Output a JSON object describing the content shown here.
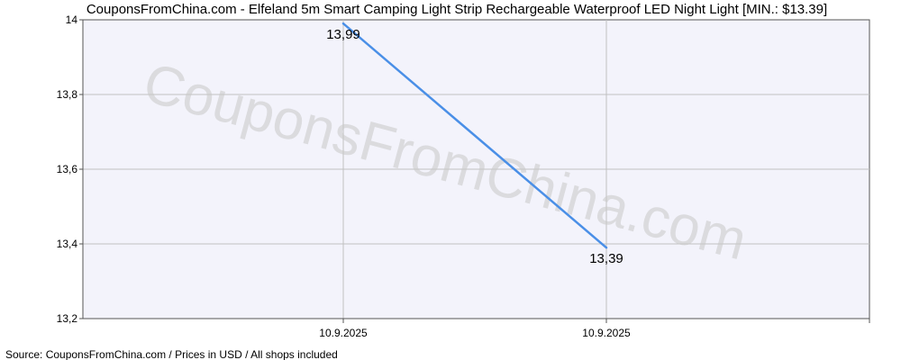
{
  "chart_data": {
    "type": "line",
    "title": "CouponsFromChina.com - Elfeland 5m Smart Camping Light Strip Rechargeable Waterproof LED Night Light [MIN.: $13.39]",
    "xlabel": "",
    "ylabel": "",
    "x_tick_labels": [
      "10.9.2025",
      "10.9.2025"
    ],
    "y_ticks": [
      "13,2",
      "13,4",
      "13,6",
      "13,8",
      "14"
    ],
    "y_tick_values": [
      13.2,
      13.4,
      13.6,
      13.8,
      14.0
    ],
    "ylim": [
      13.2,
      14.0
    ],
    "grid": true,
    "series": [
      {
        "values": [
          13.99,
          13.39
        ],
        "labels": [
          "13,99",
          "13,39"
        ],
        "color": "#4a8fe7"
      }
    ],
    "watermark": "CouponsFromChina.com",
    "source": "Source:  CouponsFromChina.com / Prices in USD / All shops included"
  },
  "colors": {
    "plot_background": "#f3f3fb",
    "grid": "#c0c0c0",
    "axis": "#555555"
  }
}
